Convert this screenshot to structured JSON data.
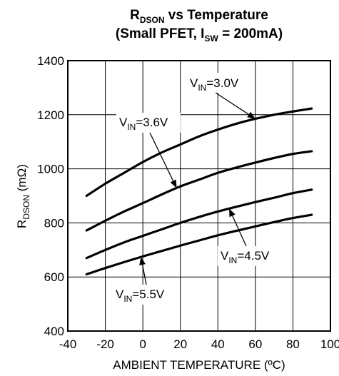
{
  "chart_data": {
    "type": "line",
    "title_main": "R",
    "title_sub": "DSON",
    "title_rest": " vs Temperature",
    "subtitle_pre": "(Small PFET, I",
    "subtitle_sub": "SW",
    "subtitle_post": " = 200mA)",
    "xlabel": "AMBIENT TEMPERATURE (ºC)",
    "ylabel_main": "R",
    "ylabel_sub": "DSON",
    "ylabel_post": " (mΩ)",
    "xlim": [
      -40,
      100
    ],
    "ylim": [
      400,
      1400
    ],
    "xticks": [
      -40,
      -20,
      0,
      20,
      40,
      60,
      80,
      100
    ],
    "yticks": [
      400,
      600,
      800,
      1000,
      1200,
      1400
    ],
    "grid": true,
    "series": [
      {
        "name": "VIN=3.0V",
        "x": [
          -30,
          -20,
          -10,
          0,
          10,
          20,
          30,
          40,
          50,
          60,
          70,
          80,
          90
        ],
        "y": [
          900,
          945,
          985,
          1025,
          1060,
          1090,
          1120,
          1145,
          1167,
          1185,
          1200,
          1212,
          1223
        ]
      },
      {
        "name": "VIN=3.6V",
        "x": [
          -30,
          -20,
          -10,
          0,
          10,
          20,
          30,
          40,
          50,
          60,
          70,
          80,
          90
        ],
        "y": [
          772,
          808,
          842,
          873,
          905,
          935,
          960,
          985,
          1005,
          1023,
          1040,
          1055,
          1065
        ]
      },
      {
        "name": "VIN=4.5V",
        "x": [
          -30,
          -20,
          -10,
          0,
          10,
          20,
          30,
          40,
          50,
          60,
          70,
          80,
          90
        ],
        "y": [
          670,
          700,
          728,
          752,
          776,
          800,
          822,
          842,
          860,
          877,
          893,
          910,
          923
        ]
      },
      {
        "name": "VIN=5.5V",
        "x": [
          -30,
          -20,
          -10,
          0,
          10,
          20,
          30,
          40,
          50,
          60,
          70,
          80,
          90
        ],
        "y": [
          610,
          633,
          655,
          676,
          696,
          716,
          735,
          754,
          771,
          787,
          803,
          818,
          830
        ]
      }
    ],
    "annotations": [
      {
        "pre": "V",
        "sub": "IN",
        "post": "=3.0V",
        "series": 0,
        "target_x": 60
      },
      {
        "pre": "V",
        "sub": "IN",
        "post": "=3.6V",
        "series": 1,
        "target_x": 18
      },
      {
        "pre": "V",
        "sub": "IN",
        "post": "=4.5V",
        "series": 2,
        "target_x": 46
      },
      {
        "pre": "V",
        "sub": "IN",
        "post": "=5.5V",
        "series": 3,
        "target_x": -1
      }
    ]
  }
}
